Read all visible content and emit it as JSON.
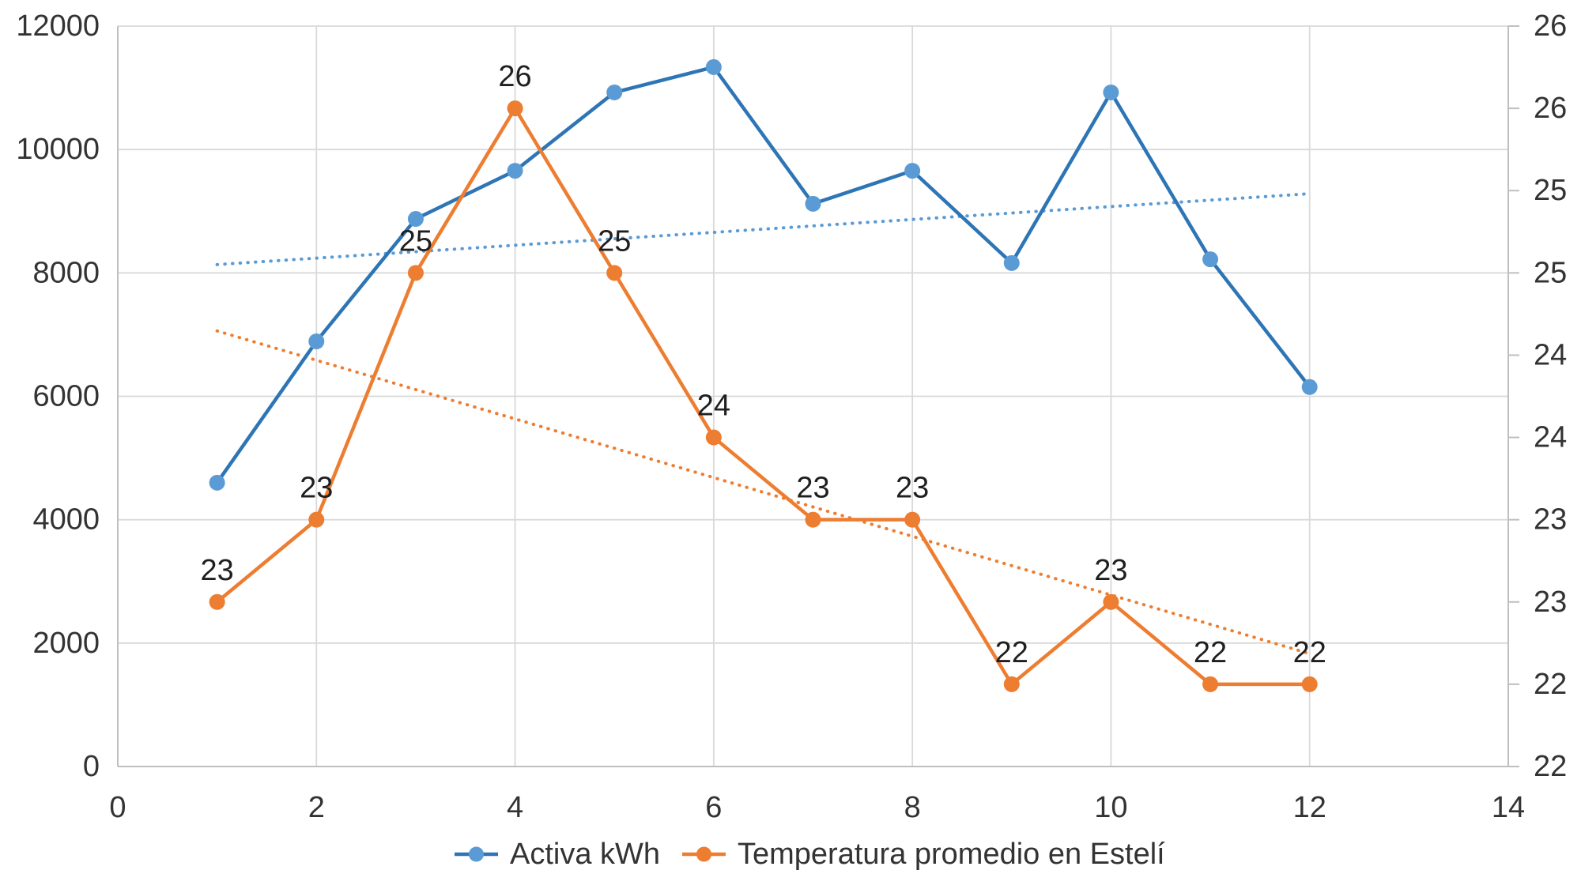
{
  "chart_data": {
    "type": "line",
    "title": "",
    "x": [
      1,
      2,
      3,
      4,
      5,
      6,
      7,
      8,
      9,
      10,
      11,
      12
    ],
    "series": [
      {
        "name": "Activa kWh",
        "axis": "left",
        "color": "#2E75B6",
        "marker_color": "#5B9BD5",
        "values": [
          4600,
          6890,
          8875,
          9655,
          10925,
          11335,
          9120,
          9655,
          8160,
          10925,
          8220,
          6150
        ],
        "trendline": true,
        "trendline_color": "#5B9BD5"
      },
      {
        "name": "Temperatura promedio en Estelí",
        "axis": "right",
        "color": "#ED7D31",
        "marker_color": "#ED7D31",
        "values": [
          22.5,
          23,
          24.5,
          25.5,
          24.5,
          23.5,
          23,
          23,
          22,
          22.5,
          22,
          22
        ],
        "data_labels": [
          "23",
          "23",
          "25",
          "26",
          "25",
          "24",
          "23",
          "23",
          "22",
          "23",
          "22",
          "22"
        ],
        "trendline": true,
        "trendline_color": "#ED7D31"
      }
    ],
    "x_axis": {
      "min": 0,
      "max": 14,
      "tick_step": 2,
      "labels": [
        "0",
        "2",
        "4",
        "6",
        "8",
        "10",
        "12",
        "14"
      ]
    },
    "y_left_axis": {
      "min": 0,
      "max": 12000,
      "step": 2000,
      "labels": [
        "12000",
        "10000",
        "8000",
        "6000",
        "4000",
        "2000",
        "0"
      ]
    },
    "y_right_axis": {
      "min": 21.5,
      "max": 26,
      "step": 0.5,
      "labels": [
        "26",
        "26",
        "25",
        "25",
        "24",
        "24",
        "23",
        "23",
        "22",
        "22"
      ]
    },
    "legend_position": "bottom",
    "grid": true,
    "colors": {
      "gridline": "#D9D9D9",
      "axis_line": "#BFBFBF",
      "text": "#333333",
      "background": "#FFFFFF"
    }
  }
}
